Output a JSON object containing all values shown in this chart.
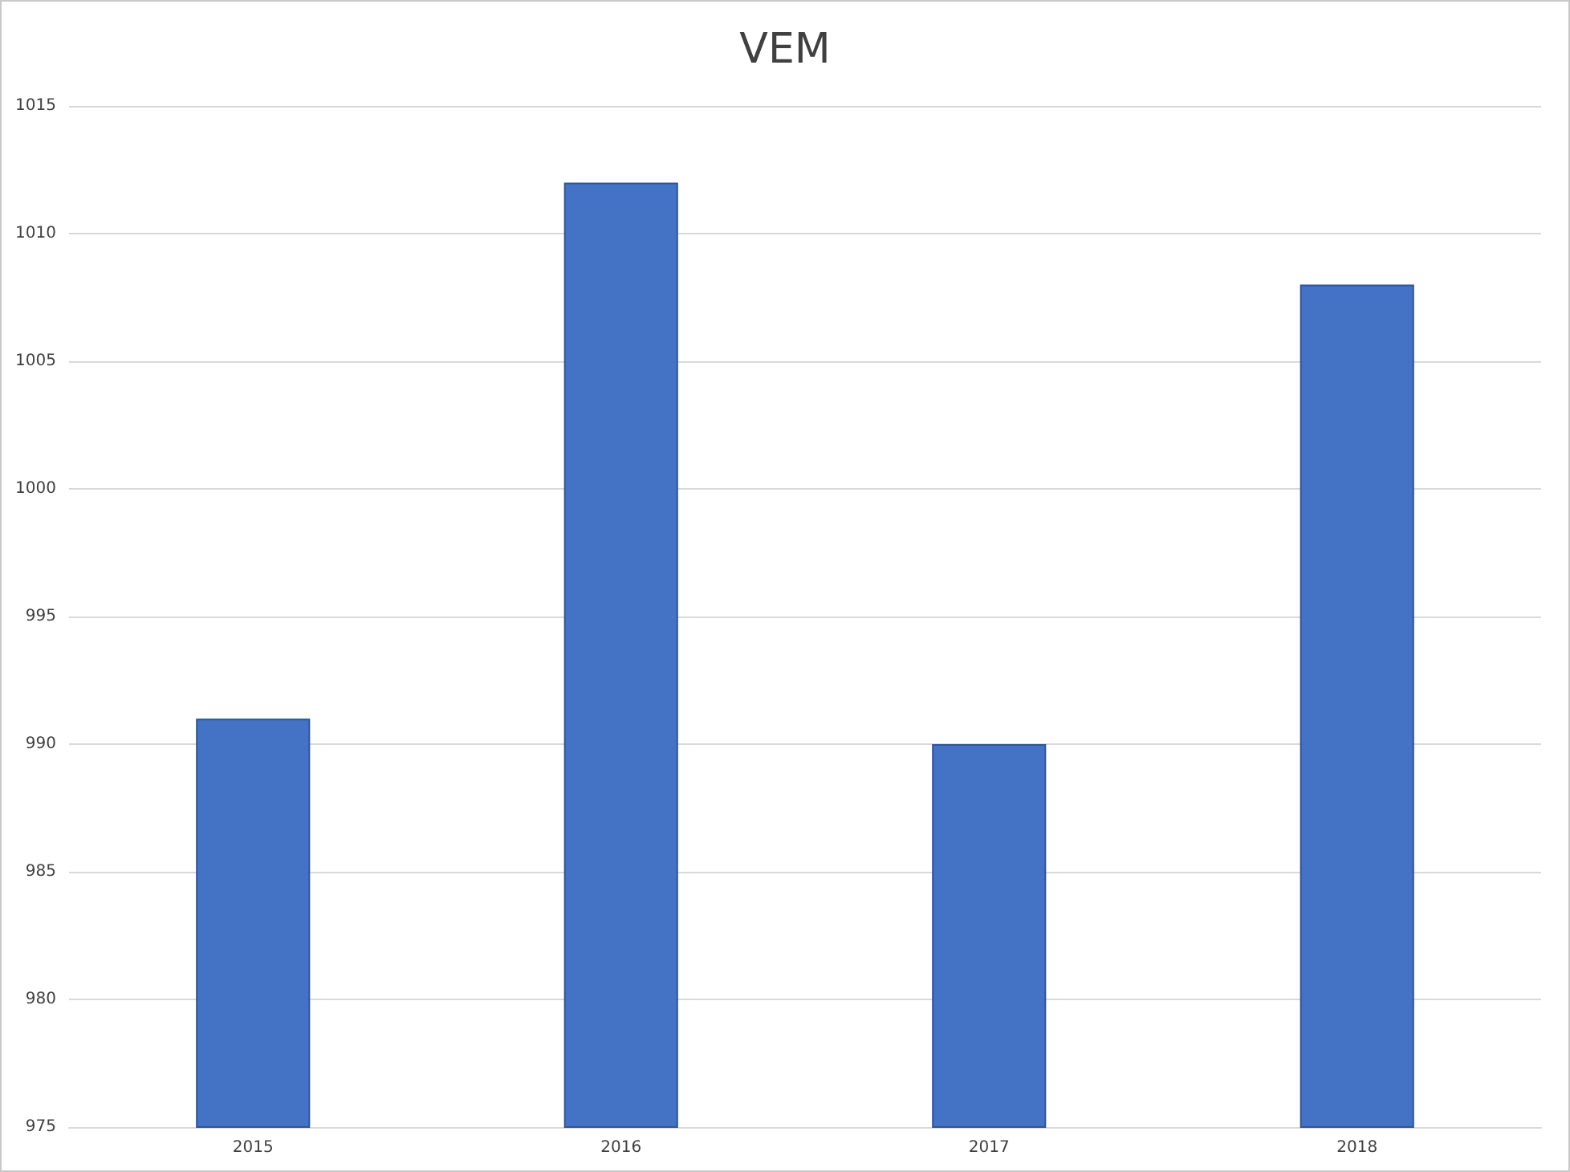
{
  "chart_data": {
    "type": "bar",
    "title": "VEM",
    "categories": [
      "2015",
      "2016",
      "2017",
      "2018"
    ],
    "values": [
      991,
      1012,
      990,
      1008
    ],
    "color": "#4472c4",
    "ylim": [
      975,
      1015
    ],
    "yticks": [
      975,
      980,
      985,
      990,
      995,
      1000,
      1005,
      1010,
      1015
    ],
    "grid": "y"
  }
}
